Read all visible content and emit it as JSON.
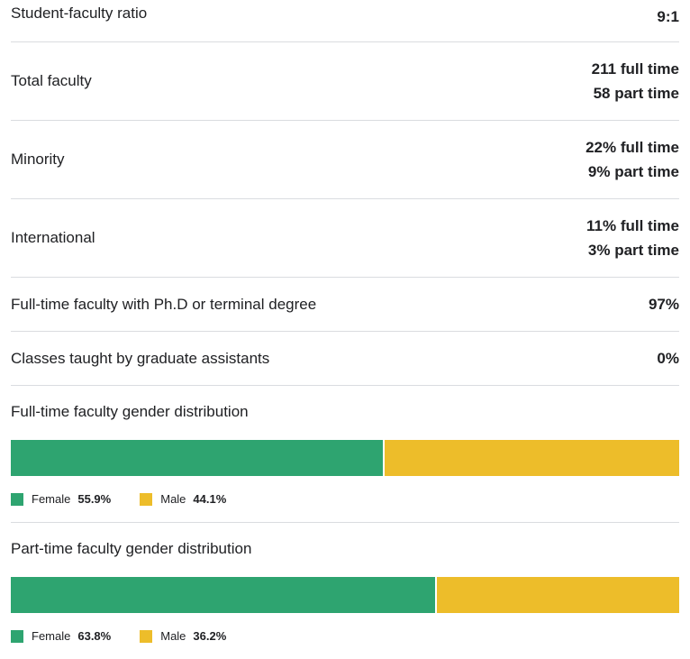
{
  "rows": {
    "ratio": {
      "label": "Student-faculty ratio",
      "value": "9:1"
    },
    "total_faculty": {
      "label": "Total faculty",
      "full_time": "211 full time",
      "part_time": "58 part time"
    },
    "minority": {
      "label": "Minority",
      "full_time": "22% full time",
      "part_time": "9% part time"
    },
    "international": {
      "label": "International",
      "full_time": "11% full time",
      "part_time": "3% part time"
    },
    "phd": {
      "label": "Full-time faculty with Ph.D or terminal degree",
      "value": "97%"
    },
    "grad_assist": {
      "label": "Classes taught by graduate assistants",
      "value": "0%"
    }
  },
  "colors": {
    "female": "#2ea470",
    "male": "#edbd2a"
  },
  "full_time_gender": {
    "title": "Full-time faculty gender distribution",
    "female_label": "Female",
    "female_pct": "55.9%",
    "female_value": 55.9,
    "male_label": "Male",
    "male_pct": "44.1%",
    "male_value": 44.1
  },
  "part_time_gender": {
    "title": "Part-time faculty gender distribution",
    "female_label": "Female",
    "female_pct": "63.8%",
    "female_value": 63.8,
    "male_label": "Male",
    "male_pct": "36.2%",
    "male_value": 36.2
  }
}
